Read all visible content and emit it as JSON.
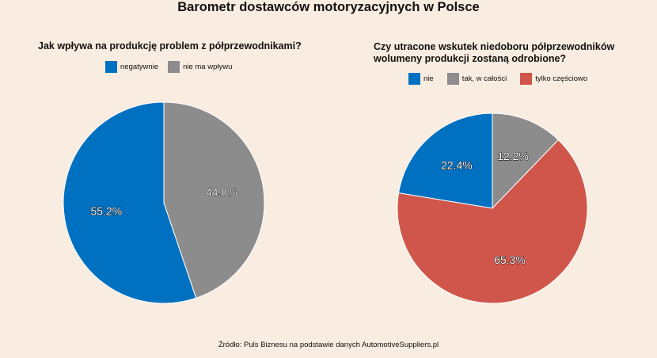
{
  "title": "Barometr dostawców motoryzacyjnych w Polsce",
  "source": "Źródło: Puls Biznesu na podstawie danych AutomotiveSuppliers.pl",
  "chart_data": [
    {
      "type": "pie",
      "title": "Jak wpływa na produkcję problem z półprzewodnikami?",
      "legend_position": "top",
      "categories": [
        "negatywnie",
        "nie ma wpływu"
      ],
      "values": [
        55.2,
        44.8
      ],
      "labels": [
        "55.2%",
        "44.8%"
      ],
      "colors": [
        "#0070c0",
        "#8c8c8c"
      ]
    },
    {
      "type": "pie",
      "title": "Czy utracone wskutek niedoboru półprzewodników wolumeny produkcji zostaną odrobione?",
      "legend_position": "top",
      "categories": [
        "nie",
        "tak, w całości",
        "tylko częściowo"
      ],
      "values": [
        22.4,
        12.2,
        65.3
      ],
      "labels": [
        "22.4%",
        "12.2%",
        "65.3%"
      ],
      "colors": [
        "#0070c0",
        "#8c8c8c",
        "#d0554b"
      ]
    }
  ]
}
